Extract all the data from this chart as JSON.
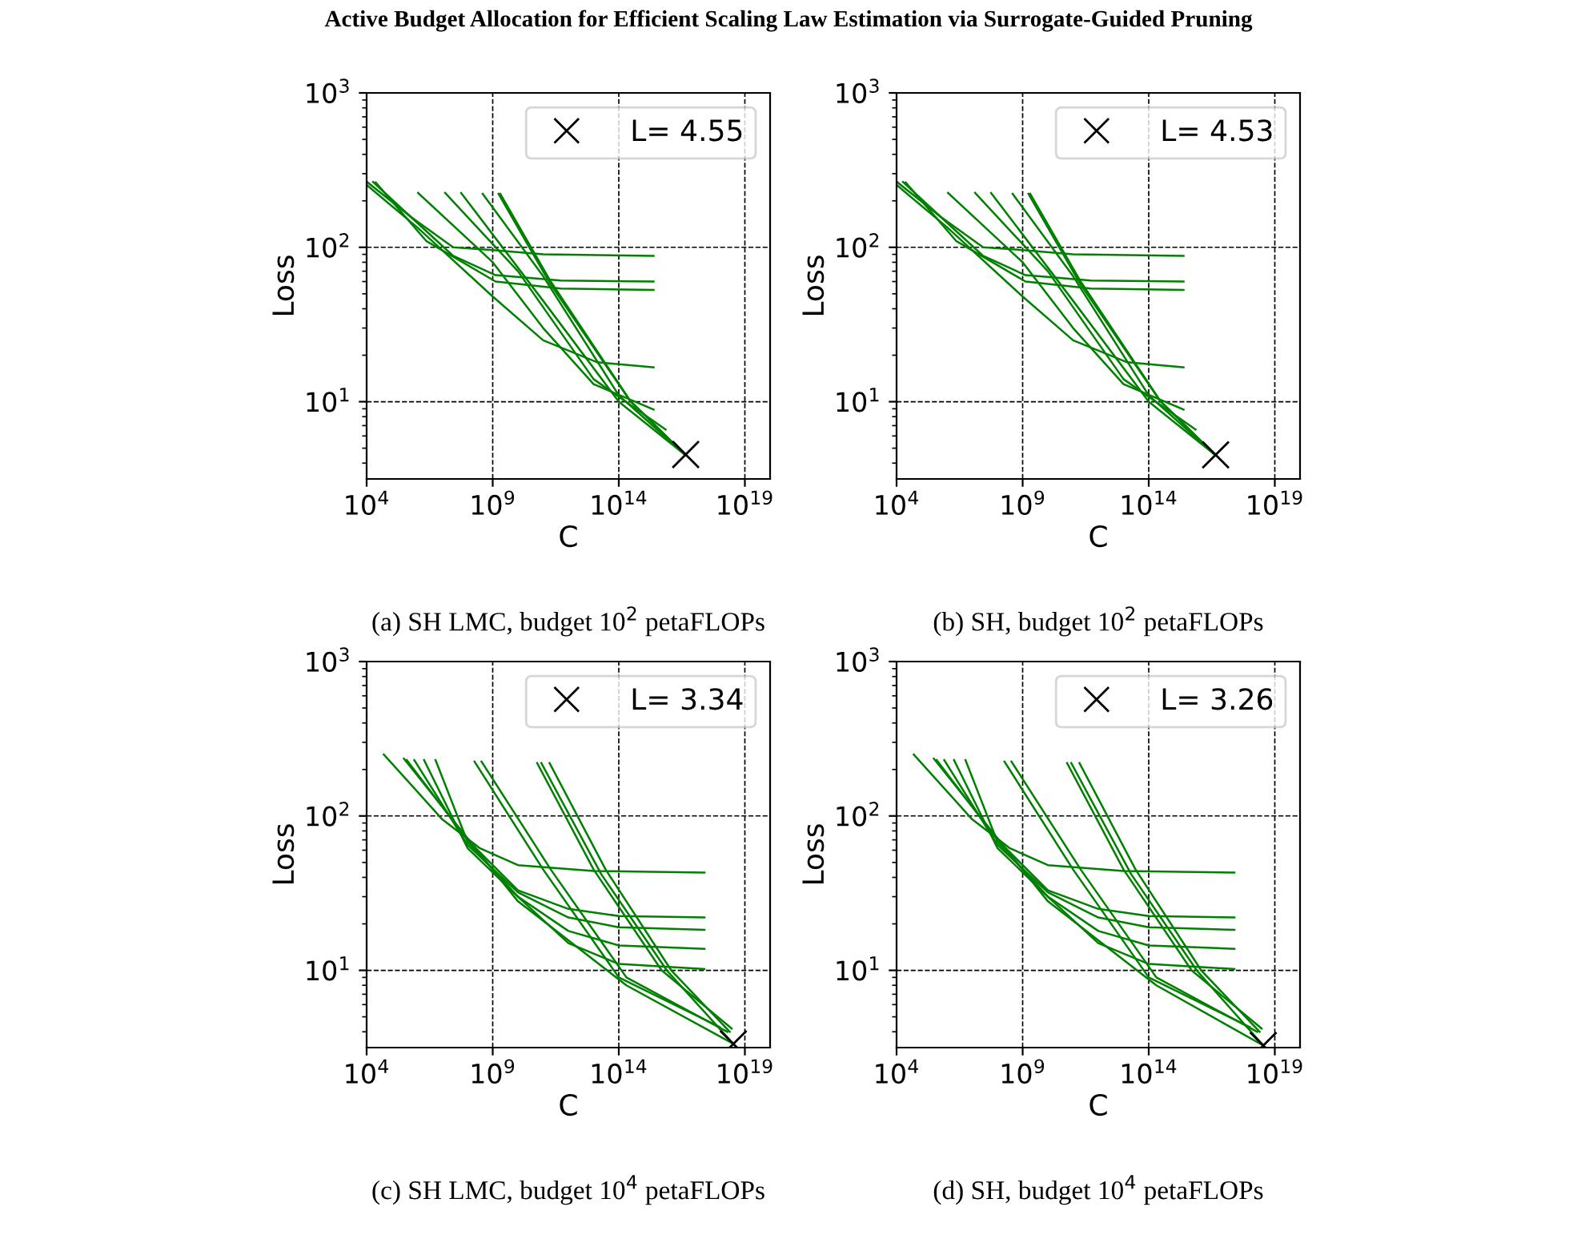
{
  "chart_data": [
    {
      "type": "line",
      "xlabel": "C",
      "ylabel": "Loss",
      "log": "xy",
      "xlim": [
        10000.0,
        1e+20
      ],
      "ylim": [
        3.16,
        1000
      ],
      "xticks": [
        {
          "value": 10000.0,
          "label": "10$^{4}$"
        },
        {
          "value": 1000000000.0,
          "label": "10$^{9}$"
        },
        {
          "value": 100000000000000.0,
          "label": "10$^{14}$"
        },
        {
          "value": 1e+19,
          "label": "10$^{19}$"
        }
      ],
      "yticks": [
        {
          "value": 10,
          "label": "10$^{1}$"
        },
        {
          "value": 100,
          "label": "10$^{2}$"
        },
        {
          "value": 1000,
          "label": "10$^{3}$"
        }
      ],
      "grid": true,
      "legend": "top right",
      "annotations": [
        "Active Budget Allocation for Efficient Scaling Law Estimation via Surrogate-Guided Pruning",
        "(a) SH LMC, budget 10$^{2}$ petaFLOPs"
      ],
      "series": [
        {
          "color": "#008000",
          "x": [
            11000.0,
            550000.0,
            27000000.0,
            1000000000.0,
            100000000000.0,
            2400000000000000.0
          ],
          "values": [
            263,
            158,
            100,
            96,
            90,
            88
          ]
        },
        {
          "color": "#008000",
          "x": [
            18000.0,
            550000.0,
            27000000.0,
            1300000000.0,
            500000000000.0,
            2400000000000000.0
          ],
          "values": [
            265,
            158,
            88,
            66,
            61,
            60
          ]
        },
        {
          "color": "#008000",
          "x": [
            23000.0,
            2300000.0,
            1300000000.0,
            500000000000.0,
            2400000000000000.0
          ],
          "values": [
            263,
            110,
            60,
            54,
            53
          ]
        },
        {
          "color": "#008000",
          "x": [
            11000.0,
            1000000.0,
            1000000000.0,
            100000000000.0,
            14000000000000.0,
            2400000000000000.0
          ],
          "values": [
            250,
            135,
            48,
            25,
            18,
            16.7
          ]
        },
        {
          "color": "#008000",
          "x": [
            1100000.0,
            1000000000.0,
            100000000000.0,
            10000000000000.0,
            2400000000000000.0
          ],
          "values": [
            225,
            80,
            30,
            13,
            8.9
          ]
        },
        {
          "color": "#008000",
          "x": [
            13000000.0,
            10000000000.0,
            10000000000000.0,
            7200000000000000.0
          ],
          "values": [
            225,
            70,
            14,
            6.6
          ]
        },
        {
          "color": "#008000",
          "x": [
            56000000.0,
            100000000000.0,
            100000000000000.0,
            4.5e+16
          ],
          "values": [
            225,
            45,
            10,
            4.5
          ]
        },
        {
          "color": "#008000",
          "x": [
            400000000.0,
            100000000000.0,
            100000000000000.0,
            4.5e+16
          ],
          "values": [
            222,
            65,
            11,
            4.5
          ]
        },
        {
          "color": "#008000",
          "x": [
            1700000000.0,
            180000000000.0,
            260000000000000.0,
            4.5e+16
          ],
          "values": [
            222,
            59,
            10.3,
            4.5
          ]
        },
        {
          "color": "#008000",
          "x": [
            2000000000.0,
            200000000000.0,
            300000000000000.0,
            4.5e+16
          ],
          "values": [
            222,
            60,
            10,
            4.5
          ]
        },
        {
          "type": "scatter",
          "name": "L= 4.55",
          "color": "#000000",
          "marker": "cross",
          "x": [
            4.5e+16
          ],
          "values": [
            4.55
          ]
        }
      ]
    },
    {
      "type": "line",
      "xlabel": "C",
      "ylabel": "Loss",
      "log": "xy",
      "xlim": [
        10000.0,
        1e+20
      ],
      "ylim": [
        3.16,
        1000
      ],
      "xticks": [
        {
          "value": 10000.0,
          "label": "10$^{4}$"
        },
        {
          "value": 1000000000.0,
          "label": "10$^{9}$"
        },
        {
          "value": 100000000000000.0,
          "label": "10$^{14}$"
        },
        {
          "value": 1e+19,
          "label": "10$^{19}$"
        }
      ],
      "yticks": [
        {
          "value": 10,
          "label": "10$^{1}$"
        },
        {
          "value": 100,
          "label": "10$^{2}$"
        },
        {
          "value": 1000,
          "label": "10$^{3}$"
        }
      ],
      "grid": true,
      "legend": "top right",
      "annotations": [
        "(b) SH, budget 10$^{2}$ petaFLOPs"
      ],
      "series": [
        {
          "color": "#008000",
          "x": [
            11000.0,
            550000.0,
            27000000.0,
            1000000000.0,
            100000000000.0,
            2400000000000000.0
          ],
          "values": [
            263,
            158,
            100,
            96,
            90,
            88
          ]
        },
        {
          "color": "#008000",
          "x": [
            18000.0,
            550000.0,
            27000000.0,
            1300000000.0,
            500000000000.0,
            2400000000000000.0
          ],
          "values": [
            265,
            158,
            88,
            66,
            61,
            60
          ]
        },
        {
          "color": "#008000",
          "x": [
            23000.0,
            2300000.0,
            1300000000.0,
            500000000000.0,
            2400000000000000.0
          ],
          "values": [
            263,
            110,
            60,
            54,
            53
          ]
        },
        {
          "color": "#008000",
          "x": [
            11000.0,
            1000000.0,
            1000000000.0,
            100000000000.0,
            14000000000000.0,
            2400000000000000.0
          ],
          "values": [
            250,
            135,
            48,
            25,
            18,
            16.7
          ]
        },
        {
          "color": "#008000",
          "x": [
            1100000.0,
            1000000000.0,
            100000000000.0,
            10000000000000.0,
            2400000000000000.0
          ],
          "values": [
            225,
            80,
            30,
            13,
            8.9
          ]
        },
        {
          "color": "#008000",
          "x": [
            13000000.0,
            10000000000.0,
            10000000000000.0,
            7200000000000000.0
          ],
          "values": [
            225,
            70,
            14,
            6.6
          ]
        },
        {
          "color": "#008000",
          "x": [
            56000000.0,
            100000000000.0,
            100000000000000.0,
            4.5e+16
          ],
          "values": [
            225,
            45,
            10,
            4.5
          ]
        },
        {
          "color": "#008000",
          "x": [
            400000000.0,
            100000000000.0,
            100000000000000.0,
            4.5e+16
          ],
          "values": [
            222,
            65,
            11,
            4.5
          ]
        },
        {
          "color": "#008000",
          "x": [
            1700000000.0,
            180000000000.0,
            260000000000000.0,
            4.5e+16
          ],
          "values": [
            222,
            59,
            10.3,
            4.5
          ]
        },
        {
          "color": "#008000",
          "x": [
            2000000000.0,
            200000000000.0,
            300000000000000.0,
            4.5e+16
          ],
          "values": [
            222,
            60,
            10,
            4.5
          ]
        },
        {
          "type": "scatter",
          "name": "L= 4.53",
          "color": "#000000",
          "marker": "cross",
          "x": [
            4.5e+16
          ],
          "values": [
            4.53
          ]
        }
      ]
    },
    {
      "type": "line",
      "xlabel": "C",
      "ylabel": "Loss",
      "log": "xy",
      "xlim": [
        10000.0,
        1e+20
      ],
      "ylim": [
        3.16,
        1000
      ],
      "xticks": [
        {
          "value": 10000.0,
          "label": "10$^{4}$"
        },
        {
          "value": 1000000000.0,
          "label": "10$^{9}$"
        },
        {
          "value": 100000000000000.0,
          "label": "10$^{14}$"
        },
        {
          "value": 1e+19,
          "label": "10$^{19}$"
        }
      ],
      "yticks": [
        {
          "value": 10,
          "label": "10$^{1}$"
        },
        {
          "value": 100,
          "label": "10$^{2}$"
        },
        {
          "value": 1000,
          "label": "10$^{3}$"
        }
      ],
      "grid": true,
      "legend": "top right",
      "annotations": [
        "(c) SH LMC, budget 10$^{4}$ petaFLOPs"
      ],
      "series": [
        {
          "color": "#008000",
          "x": [
            48000.0,
            10000000.0,
            300000000.0,
            10000000000.0,
            10000000000000.0,
            2.5e+17
          ],
          "values": [
            250,
            95,
            62,
            48,
            44,
            43
          ]
        },
        {
          "color": "#008000",
          "x": [
            390000.0,
            100000000.0,
            10000000000.0,
            1000000000000.0,
            100000000000000.0,
            2.5e+17
          ],
          "values": [
            230,
            70,
            33,
            25,
            22.5,
            22
          ]
        },
        {
          "color": "#008000",
          "x": [
            780000.0,
            100000000.0,
            10000000000.0,
            1000000000000.0,
            100000000000000.0,
            2.5e+17
          ],
          "values": [
            230,
            65,
            32,
            22,
            19,
            18.3
          ]
        },
        {
          "color": "#008000",
          "x": [
            1900000.0,
            100000000.0,
            10000000000.0,
            1000000000000.0,
            100000000000000.0,
            2.5e+17
          ],
          "values": [
            230,
            62,
            30,
            18,
            14.5,
            13.8
          ]
        },
        {
          "color": "#008000",
          "x": [
            5400000.0,
            100000000.0,
            10000000000.0,
            1000000000000.0,
            100000000000000.0,
            2.5e+17
          ],
          "values": [
            230,
            68,
            30,
            15,
            11,
            10.2
          ]
        },
        {
          "color": "#008000",
          "x": [
            300000.0,
            10000000000.0,
            200000000000000.0,
            3.5e+18
          ],
          "values": [
            235,
            28,
            8,
            3.34
          ]
        },
        {
          "color": "#008000",
          "x": [
            190000000.0,
            100000000000.0,
            100000000000000.0,
            1e+18
          ],
          "values": [
            225,
            45,
            9,
            4.3
          ]
        },
        {
          "color": "#008000",
          "x": [
            360000000.0,
            200000000000.0,
            200000000000000.0,
            2e+18
          ],
          "values": [
            225,
            45,
            9,
            4
          ]
        },
        {
          "color": "#008000",
          "x": [
            58000000000.0,
            10000000000000.0,
            5000000000000000.0,
            3e+18
          ],
          "values": [
            220,
            45,
            10,
            4.2
          ]
        },
        {
          "color": "#008000",
          "x": [
            85000000000.0,
            20000000000000.0,
            8000000000000000.0,
            3.5e+18
          ],
          "values": [
            220,
            42,
            10,
            3.34
          ]
        },
        {
          "color": "#008000",
          "x": [
            180000000000.0,
            30000000000000.0,
            1.2e+16,
            2.5e+18
          ],
          "values": [
            220,
            45,
            10,
            4
          ]
        },
        {
          "type": "scatter",
          "name": "L= 3.34",
          "color": "#000000",
          "marker": "cross",
          "x": [
            3.5e+18
          ],
          "values": [
            3.34
          ]
        }
      ]
    },
    {
      "type": "line",
      "xlabel": "C",
      "ylabel": "Loss",
      "log": "xy",
      "xlim": [
        10000.0,
        1e+20
      ],
      "ylim": [
        3.16,
        1000
      ],
      "xticks": [
        {
          "value": 10000.0,
          "label": "10$^{4}$"
        },
        {
          "value": 1000000000.0,
          "label": "10$^{9}$"
        },
        {
          "value": 100000000000000.0,
          "label": "10$^{14}$"
        },
        {
          "value": 1e+19,
          "label": "10$^{19}$"
        }
      ],
      "yticks": [
        {
          "value": 10,
          "label": "10$^{1}$"
        },
        {
          "value": 100,
          "label": "10$^{2}$"
        },
        {
          "value": 1000,
          "label": "10$^{3}$"
        }
      ],
      "grid": true,
      "legend": "top right",
      "annotations": [
        "(d) SH, budget 10$^{4}$ petaFLOPs"
      ],
      "series": [
        {
          "color": "#008000",
          "x": [
            48000.0,
            10000000.0,
            300000000.0,
            10000000000.0,
            10000000000000.0,
            2.5e+17
          ],
          "values": [
            250,
            95,
            62,
            48,
            44,
            43
          ]
        },
        {
          "color": "#008000",
          "x": [
            390000.0,
            100000000.0,
            10000000000.0,
            1000000000000.0,
            100000000000000.0,
            2.5e+17
          ],
          "values": [
            230,
            70,
            33,
            25,
            22.5,
            22
          ]
        },
        {
          "color": "#008000",
          "x": [
            780000.0,
            100000000.0,
            10000000000.0,
            1000000000000.0,
            100000000000000.0,
            2.5e+17
          ],
          "values": [
            230,
            65,
            32,
            22,
            19,
            18.3
          ]
        },
        {
          "color": "#008000",
          "x": [
            1900000.0,
            100000000.0,
            10000000000.0,
            1000000000000.0,
            100000000000000.0,
            2.5e+17
          ],
          "values": [
            230,
            62,
            30,
            18,
            14.5,
            13.8
          ]
        },
        {
          "color": "#008000",
          "x": [
            5400000.0,
            100000000.0,
            10000000000.0,
            1000000000000.0,
            100000000000000.0,
            2.5e+17
          ],
          "values": [
            230,
            68,
            30,
            15,
            11,
            10.2
          ]
        },
        {
          "color": "#008000",
          "x": [
            300000.0,
            10000000000.0,
            200000000000000.0,
            3.5e+18
          ],
          "values": [
            235,
            28,
            8,
            3.26
          ]
        },
        {
          "color": "#008000",
          "x": [
            190000000.0,
            100000000000.0,
            100000000000000.0,
            1e+18
          ],
          "values": [
            225,
            45,
            9,
            4.3
          ]
        },
        {
          "color": "#008000",
          "x": [
            360000000.0,
            200000000000.0,
            200000000000000.0,
            2e+18
          ],
          "values": [
            225,
            45,
            9,
            4
          ]
        },
        {
          "color": "#008000",
          "x": [
            58000000000.0,
            10000000000000.0,
            5000000000000000.0,
            3e+18
          ],
          "values": [
            220,
            45,
            10,
            4.2
          ]
        },
        {
          "color": "#008000",
          "x": [
            85000000000.0,
            20000000000000.0,
            8000000000000000.0,
            3.5e+18
          ],
          "values": [
            220,
            42,
            10,
            3.26
          ]
        },
        {
          "color": "#008000",
          "x": [
            180000000000.0,
            30000000000000.0,
            1.2e+16,
            2.5e+18
          ],
          "values": [
            220,
            45,
            10,
            4
          ]
        },
        {
          "type": "scatter",
          "name": "L= 3.26",
          "color": "#000000",
          "marker": "cross",
          "x": [
            3.5e+18
          ],
          "values": [
            3.26
          ]
        }
      ]
    }
  ]
}
